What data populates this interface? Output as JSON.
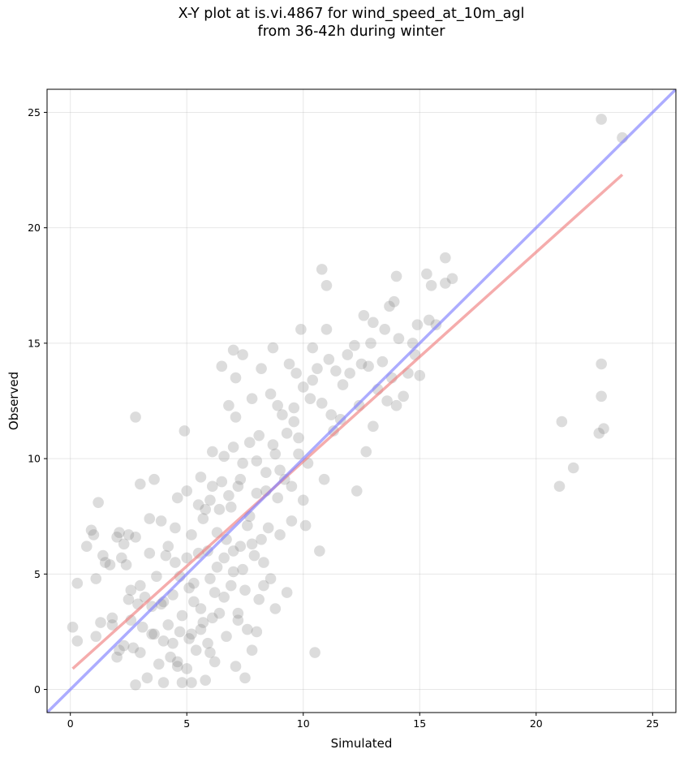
{
  "chart_data": {
    "type": "scatter",
    "title": [
      "X-Y plot at is.vi.4867 for wind_speed_at_10m_agl",
      "from 36-42h during winter"
    ],
    "xlabel": "Simulated",
    "ylabel": "Observed",
    "xlim": [
      -1,
      26
    ],
    "ylim": [
      -1,
      26
    ],
    "xticks": [
      0,
      5,
      10,
      15,
      20,
      25
    ],
    "yticks": [
      0,
      5,
      10,
      15,
      20,
      25
    ],
    "grid": true,
    "point_color": "#808080",
    "fit_line": {
      "color": "#f08080",
      "points": [
        [
          0.1,
          0.9
        ],
        [
          23.7,
          22.3
        ]
      ]
    },
    "identity_line": {
      "color": "#7f7fff",
      "points": [
        [
          -1,
          -1
        ],
        [
          26,
          26
        ]
      ]
    },
    "points": [
      [
        0.1,
        2.7
      ],
      [
        0.3,
        2.1
      ],
      [
        0.3,
        4.6
      ],
      [
        0.7,
        6.2
      ],
      [
        0.9,
        6.9
      ],
      [
        1.0,
        6.7
      ],
      [
        1.1,
        4.8
      ],
      [
        1.2,
        8.1
      ],
      [
        1.1,
        2.3
      ],
      [
        1.3,
        2.9
      ],
      [
        1.4,
        5.8
      ],
      [
        1.5,
        5.5
      ],
      [
        1.7,
        5.4
      ],
      [
        1.8,
        3.1
      ],
      [
        1.8,
        2.8
      ],
      [
        2.0,
        6.6
      ],
      [
        2.0,
        1.4
      ],
      [
        2.1,
        1.7
      ],
      [
        2.1,
        6.8
      ],
      [
        2.2,
        5.7
      ],
      [
        2.3,
        6.3
      ],
      [
        2.3,
        1.9
      ],
      [
        2.4,
        5.4
      ],
      [
        2.5,
        6.7
      ],
      [
        2.5,
        3.9
      ],
      [
        2.6,
        4.3
      ],
      [
        2.6,
        3.0
      ],
      [
        2.7,
        1.8
      ],
      [
        2.8,
        6.6
      ],
      [
        2.8,
        11.8
      ],
      [
        2.8,
        0.2
      ],
      [
        2.9,
        3.7
      ],
      [
        3.0,
        4.5
      ],
      [
        3.0,
        1.6
      ],
      [
        3.1,
        2.7
      ],
      [
        3.0,
        8.9
      ],
      [
        3.3,
        0.5
      ],
      [
        3.4,
        5.9
      ],
      [
        3.4,
        7.4
      ],
      [
        3.5,
        3.6
      ],
      [
        3.6,
        9.1
      ],
      [
        3.6,
        2.4
      ],
      [
        3.7,
        4.9
      ],
      [
        3.8,
        1.1
      ],
      [
        3.9,
        7.3
      ],
      [
        3.9,
        3.7
      ],
      [
        4.0,
        2.1
      ],
      [
        4.0,
        0.3
      ],
      [
        4.1,
        5.8
      ],
      [
        4.2,
        2.8
      ],
      [
        4.3,
        1.4
      ],
      [
        4.4,
        4.1
      ],
      [
        4.5,
        5.5
      ],
      [
        4.6,
        8.3
      ],
      [
        4.6,
        1.0
      ],
      [
        4.7,
        2.5
      ],
      [
        4.8,
        3.2
      ],
      [
        4.8,
        0.3
      ],
      [
        4.9,
        11.2
      ],
      [
        5.0,
        5.7
      ],
      [
        5.0,
        8.6
      ],
      [
        5.1,
        4.4
      ],
      [
        5.2,
        2.4
      ],
      [
        5.2,
        0.3
      ],
      [
        5.3,
        3.8
      ],
      [
        5.4,
        1.7
      ],
      [
        5.5,
        8.0
      ],
      [
        5.5,
        5.9
      ],
      [
        5.6,
        9.2
      ],
      [
        5.7,
        2.9
      ],
      [
        5.7,
        7.4
      ],
      [
        5.8,
        0.4
      ],
      [
        5.9,
        6.0
      ],
      [
        6.0,
        4.8
      ],
      [
        6.0,
        8.2
      ],
      [
        6.1,
        3.1
      ],
      [
        6.1,
        10.3
      ],
      [
        6.2,
        1.2
      ],
      [
        6.3,
        5.3
      ],
      [
        6.4,
        7.8
      ],
      [
        6.5,
        9.0
      ],
      [
        6.5,
        14.0
      ],
      [
        6.6,
        4.0
      ],
      [
        6.7,
        6.5
      ],
      [
        6.7,
        2.3
      ],
      [
        6.8,
        12.3
      ],
      [
        6.9,
        7.9
      ],
      [
        7.0,
        14.7
      ],
      [
        7.0,
        5.1
      ],
      [
        7.1,
        1.0
      ],
      [
        7.1,
        11.8
      ],
      [
        7.1,
        13.5
      ],
      [
        7.2,
        8.8
      ],
      [
        7.2,
        3.3
      ],
      [
        7.3,
        6.2
      ],
      [
        7.4,
        9.8
      ],
      [
        7.4,
        14.5
      ],
      [
        7.5,
        0.5
      ],
      [
        7.5,
        4.3
      ],
      [
        7.6,
        7.1
      ],
      [
        7.7,
        10.7
      ],
      [
        7.8,
        1.7
      ],
      [
        7.8,
        12.6
      ],
      [
        7.9,
        5.8
      ],
      [
        8.0,
        8.5
      ],
      [
        8.0,
        2.5
      ],
      [
        8.1,
        11.0
      ],
      [
        8.2,
        13.9
      ],
      [
        8.2,
        6.5
      ],
      [
        8.3,
        4.5
      ],
      [
        8.4,
        9.4
      ],
      [
        8.5,
        7.0
      ],
      [
        8.6,
        12.8
      ],
      [
        8.7,
        14.8
      ],
      [
        8.8,
        10.2
      ],
      [
        8.8,
        3.5
      ],
      [
        8.9,
        8.3
      ],
      [
        9.0,
        6.7
      ],
      [
        9.1,
        11.9
      ],
      [
        9.2,
        9.1
      ],
      [
        9.3,
        4.2
      ],
      [
        9.4,
        14.1
      ],
      [
        9.5,
        7.3
      ],
      [
        9.6,
        12.2
      ],
      [
        9.7,
        13.7
      ],
      [
        9.8,
        10.9
      ],
      [
        9.9,
        15.6
      ],
      [
        10.0,
        8.2
      ],
      [
        10.0,
        13.1
      ],
      [
        10.1,
        7.1
      ],
      [
        10.2,
        9.8
      ],
      [
        10.3,
        12.6
      ],
      [
        10.4,
        14.8
      ],
      [
        10.5,
        1.6
      ],
      [
        10.6,
        13.9
      ],
      [
        10.7,
        6.0
      ],
      [
        10.8,
        12.4
      ],
      [
        10.8,
        18.2
      ],
      [
        10.9,
        9.1
      ],
      [
        11.0,
        15.6
      ],
      [
        11.0,
        17.5
      ],
      [
        11.1,
        14.3
      ],
      [
        11.2,
        11.9
      ],
      [
        11.4,
        13.8
      ],
      [
        11.6,
        11.7
      ],
      [
        11.7,
        13.2
      ],
      [
        11.9,
        14.5
      ],
      [
        12.0,
        13.7
      ],
      [
        12.2,
        14.9
      ],
      [
        12.3,
        8.6
      ],
      [
        12.4,
        12.3
      ],
      [
        12.5,
        14.1
      ],
      [
        12.6,
        16.2
      ],
      [
        12.7,
        10.3
      ],
      [
        12.9,
        15.0
      ],
      [
        13.0,
        11.4
      ],
      [
        13.0,
        15.9
      ],
      [
        13.2,
        13.0
      ],
      [
        13.4,
        14.2
      ],
      [
        13.5,
        15.6
      ],
      [
        13.6,
        12.5
      ],
      [
        13.7,
        16.6
      ],
      [
        13.8,
        13.5
      ],
      [
        13.9,
        16.8
      ],
      [
        14.0,
        17.9
      ],
      [
        14.0,
        12.3
      ],
      [
        14.1,
        15.2
      ],
      [
        14.3,
        12.7
      ],
      [
        14.5,
        13.7
      ],
      [
        14.7,
        15.0
      ],
      [
        14.8,
        14.5
      ],
      [
        14.9,
        15.8
      ],
      [
        15.0,
        13.6
      ],
      [
        15.3,
        18.0
      ],
      [
        15.4,
        16.0
      ],
      [
        15.5,
        17.5
      ],
      [
        15.7,
        15.8
      ],
      [
        16.1,
        18.7
      ],
      [
        16.1,
        17.6
      ],
      [
        16.4,
        17.8
      ],
      [
        21.0,
        8.8
      ],
      [
        21.1,
        11.6
      ],
      [
        21.6,
        9.6
      ],
      [
        22.7,
        11.1
      ],
      [
        22.8,
        12.7
      ],
      [
        22.8,
        14.1
      ],
      [
        22.9,
        11.3
      ],
      [
        22.8,
        24.7
      ],
      [
        23.7,
        23.9
      ],
      [
        3.2,
        4.0
      ],
      [
        3.5,
        2.4
      ],
      [
        4.0,
        3.8
      ],
      [
        4.4,
        2.0
      ],
      [
        4.7,
        4.9
      ],
      [
        5.1,
        2.2
      ],
      [
        5.3,
        4.6
      ],
      [
        5.6,
        3.5
      ],
      [
        5.9,
        2.0
      ],
      [
        6.2,
        4.2
      ],
      [
        6.4,
        3.3
      ],
      [
        6.6,
        5.7
      ],
      [
        6.9,
        4.5
      ],
      [
        7.2,
        3.0
      ],
      [
        7.4,
        5.2
      ],
      [
        7.6,
        2.6
      ],
      [
        7.8,
        6.3
      ],
      [
        8.1,
        3.9
      ],
      [
        8.3,
        5.5
      ],
      [
        8.6,
        4.8
      ],
      [
        6.3,
        6.8
      ],
      [
        6.8,
        8.4
      ],
      [
        7.0,
        6.0
      ],
      [
        7.3,
        9.1
      ],
      [
        7.7,
        7.5
      ],
      [
        8.0,
        9.9
      ],
      [
        8.4,
        8.6
      ],
      [
        8.7,
        10.6
      ],
      [
        9.0,
        9.5
      ],
      [
        9.3,
        11.1
      ],
      [
        9.5,
        8.8
      ],
      [
        9.8,
        10.2
      ],
      [
        4.6,
        1.2
      ],
      [
        5.0,
        0.9
      ],
      [
        5.6,
        2.6
      ],
      [
        6.0,
        1.6
      ],
      [
        4.2,
        6.2
      ],
      [
        4.5,
        7.0
      ],
      [
        5.2,
        6.7
      ],
      [
        5.8,
        7.8
      ],
      [
        6.1,
        8.8
      ],
      [
        6.6,
        10.1
      ],
      [
        7.0,
        10.5
      ],
      [
        8.9,
        12.3
      ],
      [
        9.6,
        11.6
      ],
      [
        10.4,
        13.4
      ],
      [
        11.3,
        11.2
      ],
      [
        12.8,
        14.0
      ]
    ]
  }
}
